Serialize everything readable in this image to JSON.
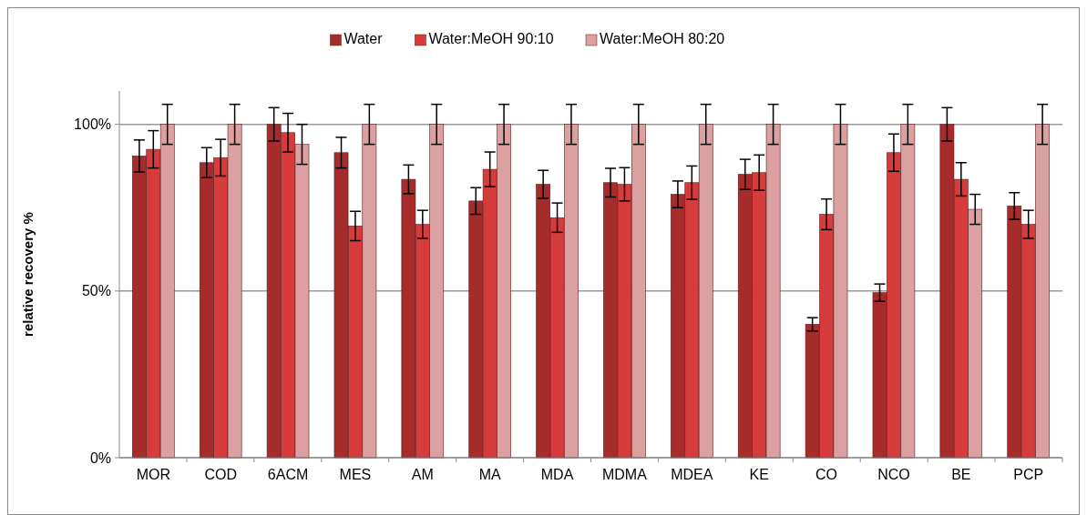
{
  "chart_data": {
    "type": "bar",
    "ylabel": "relative recovery %",
    "categories": [
      "MOR",
      "COD",
      "6ACM",
      "MES",
      "AM",
      "MA",
      "MDA",
      "MDMA",
      "MDEA",
      "KE",
      "CO",
      "NCO",
      "BE",
      "PCP"
    ],
    "series": [
      {
        "name": "Water",
        "color": "#a62b2b",
        "values": [
          90.5,
          88.5,
          100,
          91.5,
          83.5,
          77,
          82,
          82.5,
          79,
          85,
          40,
          49.5,
          100,
          75.5
        ],
        "errors": [
          4.8,
          4.5,
          5,
          4.6,
          4.3,
          4,
          4.2,
          4.3,
          4,
          4.5,
          2,
          2.6,
          5,
          4
        ]
      },
      {
        "name": "Water:MeOH 90:10",
        "color": "#d63c3c",
        "values": [
          92.5,
          90,
          97.5,
          69.5,
          70,
          86.5,
          72,
          82,
          82.5,
          85.5,
          73,
          91.5,
          83.5,
          70
        ],
        "errors": [
          5.6,
          5.5,
          5.8,
          4.4,
          4.2,
          5.2,
          4.4,
          5,
          5,
          5.3,
          4.6,
          5.6,
          5,
          4.2
        ]
      },
      {
        "name": "Water:MeOH 80:20",
        "color": "#dba0a0",
        "values": [
          100,
          100,
          94,
          100,
          100,
          100,
          100,
          100,
          100,
          100,
          100,
          100,
          74.5,
          100
        ],
        "errors": [
          6,
          6,
          6,
          6,
          6,
          6,
          6,
          6,
          6,
          6,
          6,
          6,
          4.5,
          6
        ]
      }
    ],
    "ylim": [
      0,
      110
    ],
    "yticks": [
      {
        "value": 0,
        "label": "0%"
      },
      {
        "value": 50,
        "label": "50%"
      },
      {
        "value": 100,
        "label": "100%"
      }
    ],
    "grid": "y",
    "legend": "top"
  }
}
